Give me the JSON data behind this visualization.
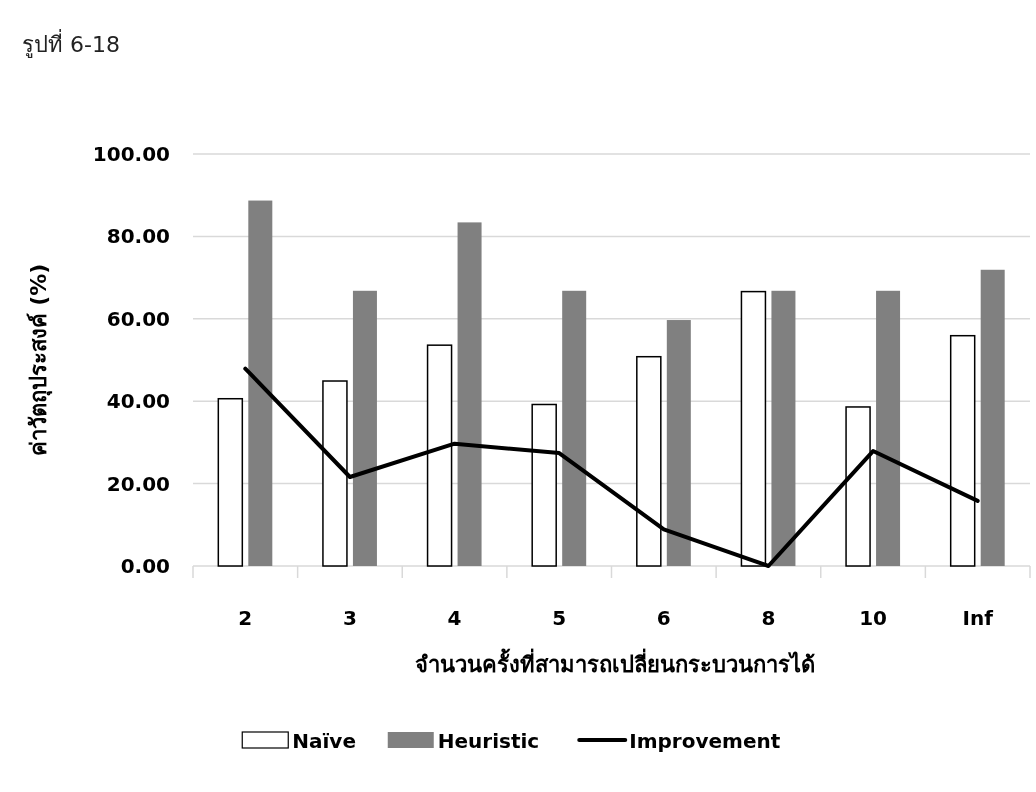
{
  "chart_data": {
    "type": "bar",
    "xlabel": "จำนวนครั้งที่สามารถเปลี่ยนกระบวนการได้",
    "ylabel": "ค่าวัตถุประสงค์ (%)",
    "annotations": [
      "รูปที่ 6-18"
    ],
    "categories": [
      "2",
      "3",
      "4",
      "5",
      "6",
      "8",
      "10",
      "Inf"
    ],
    "series": [
      {
        "name": "Naïve",
        "color": "#ffffff",
        "values": [
          40.6,
          44.9,
          53.6,
          39.2,
          50.8,
          66.6,
          38.6,
          55.9
        ]
      },
      {
        "name": "Heuristic",
        "color": "#808080",
        "values": [
          88.7,
          66.8,
          83.4,
          66.8,
          59.7,
          66.8,
          66.8,
          71.9
        ]
      },
      {
        "name": "Improvement",
        "type": "line",
        "color": "#000000",
        "values": [
          47.9,
          21.6,
          29.7,
          27.4,
          8.9,
          0,
          27.9,
          15.8
        ]
      }
    ],
    "ylim": [
      0,
      100
    ],
    "yticks": [
      {
        "value": 0,
        "label": "0.00"
      },
      {
        "value": 20,
        "label": "20.00"
      },
      {
        "value": 40,
        "label": "40.00"
      },
      {
        "value": 60,
        "label": "60.00"
      },
      {
        "value": 80,
        "label": "80.00"
      },
      {
        "value": 100,
        "label": "100.00"
      }
    ],
    "grid": "y",
    "legend": "bottom",
    "marker": "none",
    "line_style": "solid"
  }
}
